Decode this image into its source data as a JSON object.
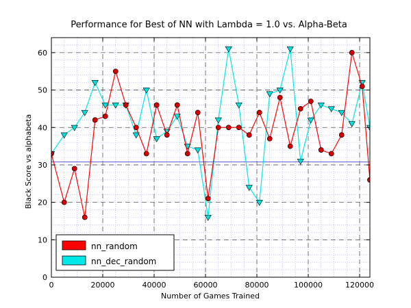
{
  "chart_data": {
    "type": "line",
    "title": "Performance for Best of NN with Lambda = 1.0 vs. Alpha-Beta",
    "xlabel": "Number of Games Trained",
    "ylabel": "Black Score vs alphabeta",
    "xlim": [
      0,
      124000
    ],
    "ylim": [
      0,
      64
    ],
    "xticks": [
      0,
      20000,
      40000,
      60000,
      80000,
      100000,
      120000
    ],
    "yticks": [
      0,
      10,
      20,
      30,
      40,
      50,
      60
    ],
    "grid": true,
    "legend_position": "bottom-left",
    "reference_line": {
      "y": 30.8,
      "color": "#6a6ad8"
    },
    "series": [
      {
        "name": "nn_random",
        "color": "#ff0000",
        "marker_color": "#d40000",
        "marker": "circle",
        "x": [
          0,
          5000,
          9000,
          13000,
          17000,
          21000,
          25000,
          29000,
          33000,
          37000,
          41000,
          45000,
          49000,
          53000,
          57000,
          61000,
          65000,
          69000,
          73000,
          77000,
          81000,
          85000,
          89000,
          93000,
          97000,
          101000,
          105000,
          109000,
          113000,
          117000,
          121000,
          124000
        ],
        "y": [
          33,
          20,
          29,
          16,
          42,
          43,
          55,
          46,
          40,
          33,
          46,
          38,
          46,
          33,
          44,
          21,
          40,
          40,
          40,
          38,
          44,
          37,
          48,
          35,
          45,
          47,
          34,
          33,
          38,
          60,
          51,
          26
        ]
      },
      {
        "name": "nn_dec_random",
        "color": "#00e8e8",
        "marker_color": "#00e0e0",
        "marker": "triangle-down",
        "x": [
          0,
          5000,
          9000,
          13000,
          17000,
          21000,
          25000,
          29000,
          33000,
          37000,
          41000,
          45000,
          49000,
          53000,
          57000,
          61000,
          65000,
          69000,
          73000,
          77000,
          81000,
          85000,
          89000,
          93000,
          97000,
          101000,
          105000,
          109000,
          113000,
          117000,
          121000,
          124000
        ],
        "y": [
          33,
          38,
          40,
          44,
          52,
          46,
          46,
          46,
          38,
          50,
          37,
          39,
          43,
          35,
          34,
          16,
          42,
          61,
          46,
          24,
          20,
          49,
          50,
          61,
          31,
          42,
          46,
          45,
          44,
          41,
          52,
          40
        ]
      }
    ]
  }
}
